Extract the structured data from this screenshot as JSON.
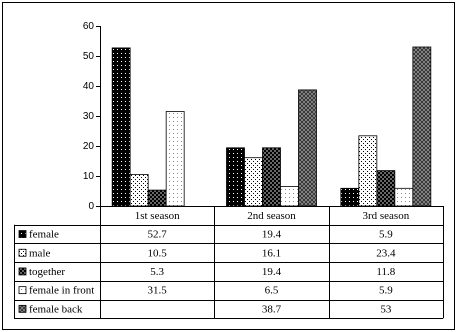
{
  "chart_data": {
    "type": "bar",
    "categories": [
      "1st season",
      "2nd season",
      "3rd season"
    ],
    "series": [
      {
        "name": "female",
        "values": [
          52.7,
          19.4,
          5.9
        ]
      },
      {
        "name": "male",
        "values": [
          10.5,
          16.1,
          23.4
        ]
      },
      {
        "name": "together",
        "values": [
          5.3,
          19.4,
          11.8
        ]
      },
      {
        "name": "female in front",
        "values": [
          31.5,
          6.5,
          5.9
        ]
      },
      {
        "name": "female back",
        "values": [
          null,
          38.7,
          53
        ]
      }
    ],
    "ylim": [
      0,
      60
    ],
    "yticks": [
      0,
      10,
      20,
      30,
      40,
      50,
      60
    ],
    "grid": false
  }
}
